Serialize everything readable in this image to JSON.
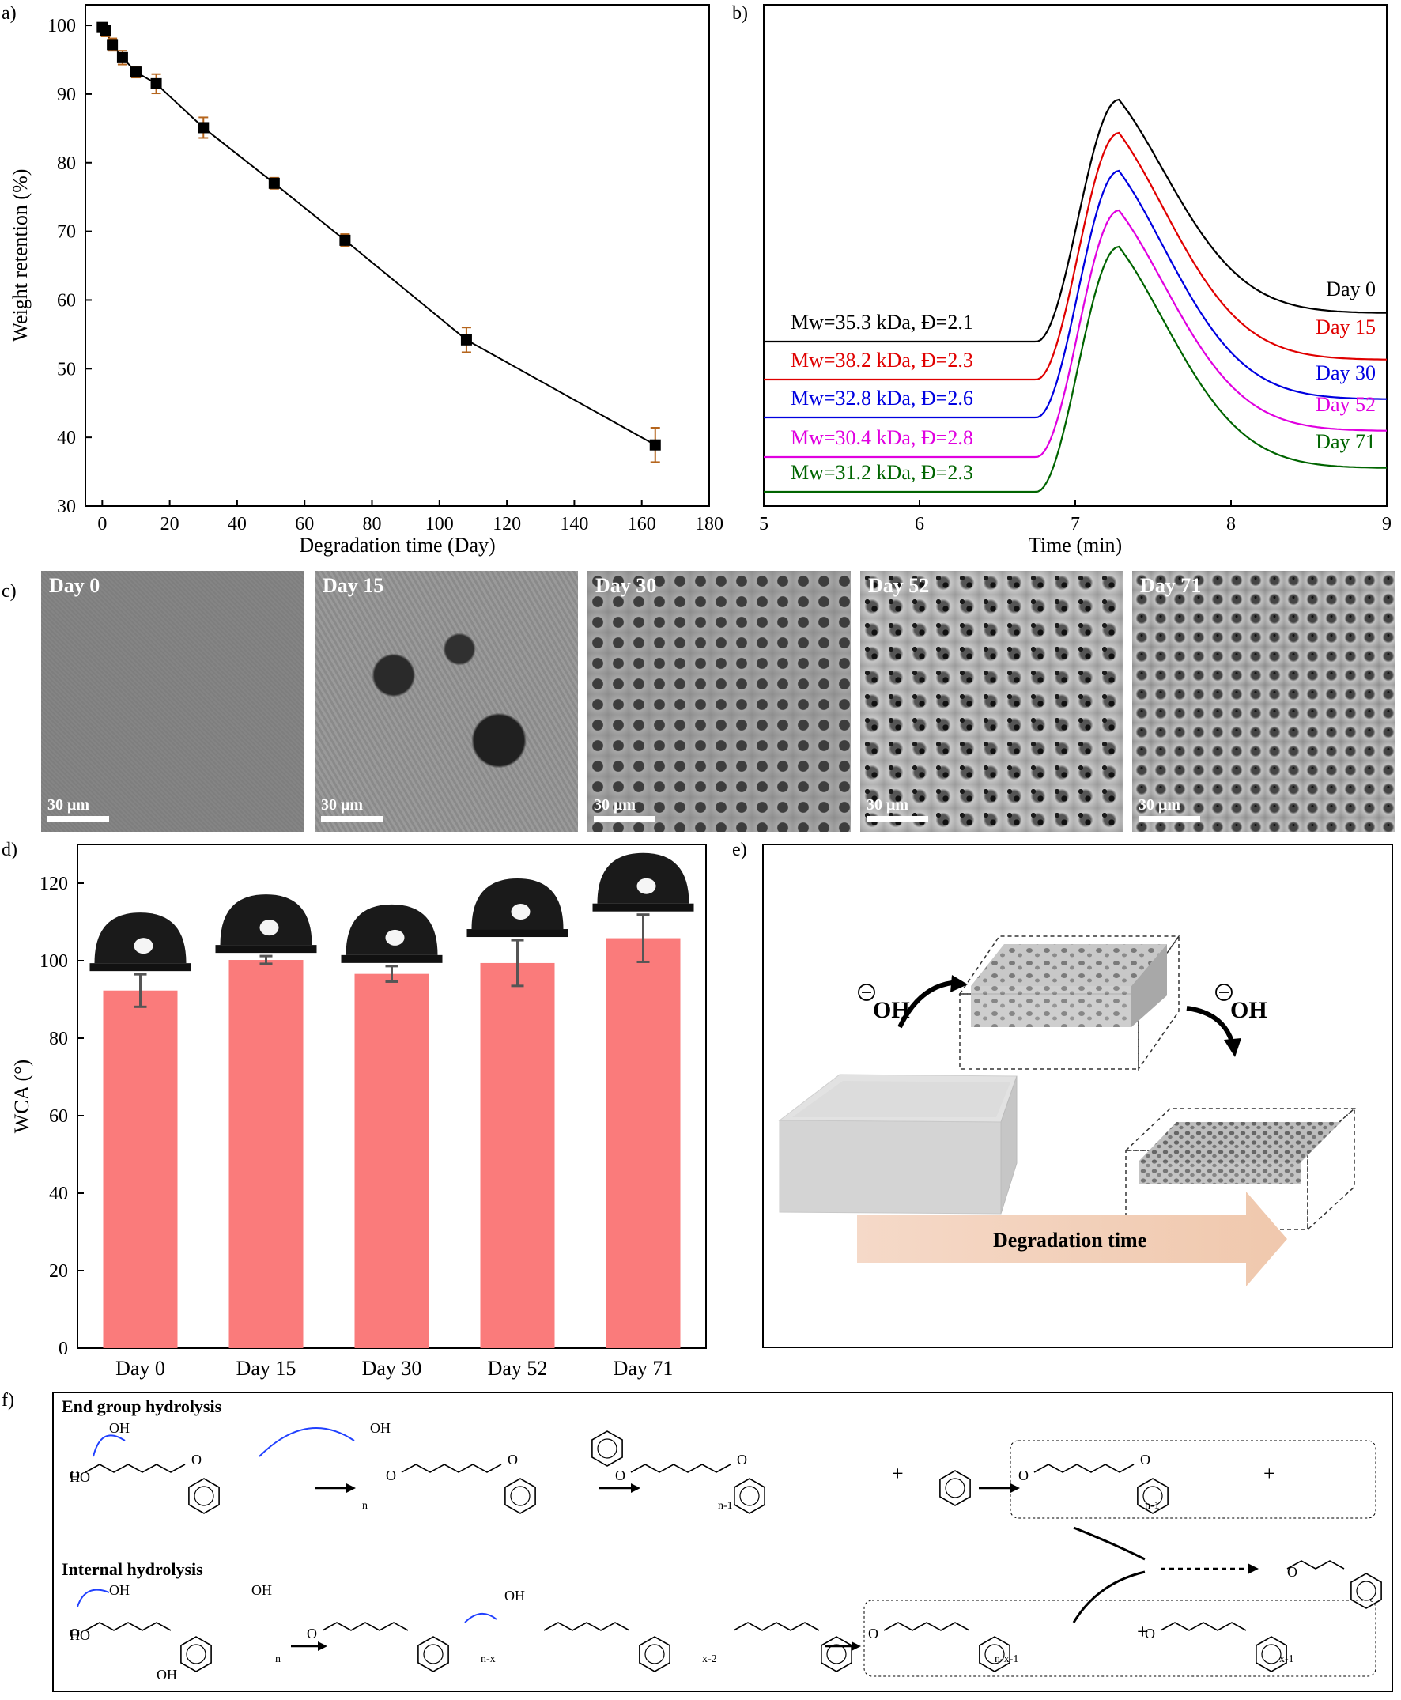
{
  "panels": {
    "a": "a)",
    "b": "b)",
    "c": "c)",
    "d": "d)",
    "e": "e)",
    "f": "f)"
  },
  "chart_data": [
    {
      "id": "a",
      "type": "line",
      "xlabel": "Degradation time (Day)",
      "ylabel": "Weight retention (%)",
      "xlim": [
        -5,
        180
      ],
      "ylim": [
        30,
        103
      ],
      "xticks": [
        0,
        20,
        40,
        60,
        80,
        100,
        120,
        140,
        160,
        180
      ],
      "yticks": [
        30,
        40,
        50,
        60,
        70,
        80,
        90,
        100
      ],
      "x": [
        0,
        1,
        3,
        6,
        10,
        16,
        30,
        51,
        72,
        108,
        164
      ],
      "y": [
        99.7,
        99.2,
        97.2,
        95.3,
        93.2,
        91.5,
        85.1,
        77.0,
        68.7,
        54.2,
        38.9
      ],
      "error": [
        0.5,
        0.8,
        0.9,
        1.0,
        0.8,
        1.4,
        1.5,
        0.8,
        0.9,
        1.8,
        2.5
      ],
      "marker_color": "#000000",
      "error_color": "#b5651d"
    },
    {
      "id": "b",
      "type": "line",
      "xlabel": "Time (min)",
      "xlim": [
        5,
        9
      ],
      "xticks": [
        5,
        6,
        7,
        8,
        9
      ],
      "series": [
        {
          "name": "Day 0",
          "annotation": "Mw=35.3 kDa, Đ=2.1",
          "color": "#000000"
        },
        {
          "name": "Day 15",
          "annotation": "Mw=38.2 kDa, Đ=2.3",
          "color": "#e00000"
        },
        {
          "name": "Day 30",
          "annotation": "Mw=32.8 kDa, Đ=2.6",
          "color": "#0000e0"
        },
        {
          "name": "Day 52",
          "annotation": "Mw=30.4 kDa, Đ=2.8",
          "color": "#e000e0"
        },
        {
          "name": "Day 71",
          "annotation": "Mw=31.2 kDa, Đ=2.3",
          "color": "#006400"
        }
      ]
    },
    {
      "id": "d",
      "type": "bar",
      "ylabel": "WCA (°)",
      "categories": [
        "Day 0",
        "Day 15",
        "Day 30",
        "Day 52",
        "Day 71"
      ],
      "values": [
        92.3,
        100.2,
        96.6,
        99.4,
        105.8
      ],
      "error": [
        4.2,
        1.0,
        2.0,
        5.9,
        6.1
      ],
      "ylim": [
        0,
        130
      ],
      "yticks": [
        0,
        20,
        40,
        60,
        80,
        100,
        120
      ],
      "bar_color": "#fa7b7b"
    }
  ],
  "sem": {
    "scalebar": "30 μm",
    "images": [
      "Day 0",
      "Day 15",
      "Day 30",
      "Day 52",
      "Day 71"
    ]
  },
  "schematic": {
    "oh": "OH",
    "arrow_label": "Degradation time"
  },
  "mechanism": {
    "title_end": "End group hydrolysis",
    "title_internal": "Internal hydrolysis",
    "labels": [
      "OH",
      "HO",
      "O",
      "n",
      "n-1",
      "n-x",
      "x-2",
      "x-1",
      "n-x-1",
      "+"
    ]
  }
}
